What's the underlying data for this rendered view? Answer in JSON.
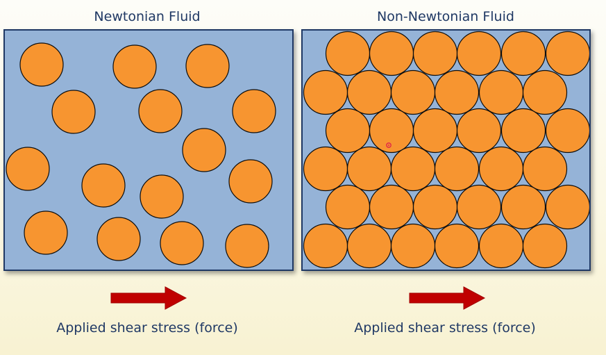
{
  "colors": {
    "fluid": "#95b3d7",
    "particle": "#f79530",
    "particle_stroke": "#0d0d0d",
    "arrow": "#c00000",
    "text": "#1f3864"
  },
  "panels": {
    "newtonian": {
      "title": "Newtonian Fluid",
      "caption": "Applied shear stress (force)",
      "particle_arrangement": "random"
    },
    "non_newtonian": {
      "title": "Non-Newtonian Fluid",
      "caption": "Applied shear stress (force)",
      "particle_arrangement": "packed"
    }
  },
  "icons": {
    "arrow": "right-arrow-icon",
    "cursor": "cursor-dot-icon"
  }
}
